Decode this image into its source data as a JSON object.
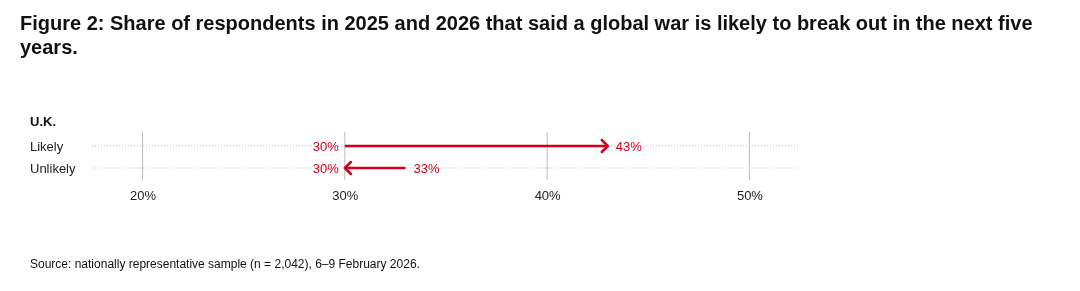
{
  "chart_data": {
    "type": "bar",
    "orientation": "horizontal",
    "title": "Figure 2: Share of respondents in 2025 and 2026 that said a global war is likely to break out in the next five years.",
    "categories": [
      "Likely",
      "Unlikely"
    ],
    "base": [
      30,
      33
    ],
    "values": [
      13,
      -3
    ],
    "color": "#d0021b",
    "xlim": [
      17.5,
      52.5
    ],
    "xticks": [
      {
        "value": 20,
        "label": "20%"
      },
      {
        "value": 30,
        "label": "30%"
      },
      {
        "value": 40,
        "label": "40%"
      },
      {
        "value": 50,
        "label": "50%"
      }
    ],
    "grid": true,
    "annotations": [
      "U.K.",
      "30%",
      "43%",
      "33%",
      "30%",
      "Source: nationally representative sample (n = 2,042), 6–9 February 2026."
    ]
  }
}
